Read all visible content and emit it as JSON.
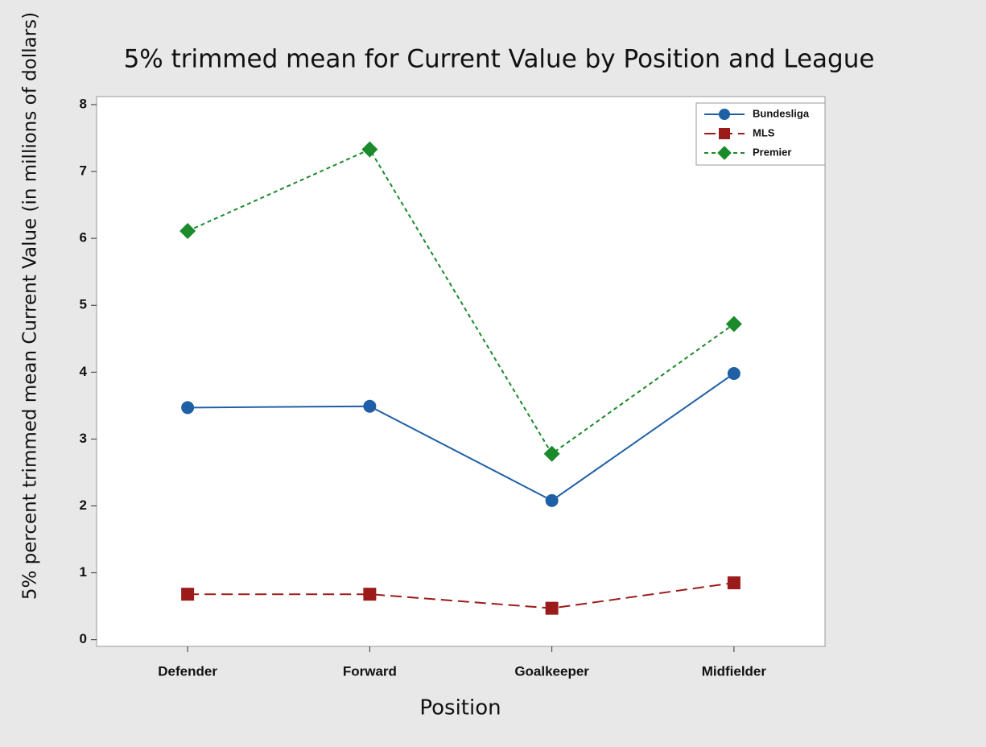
{
  "chart_data": {
    "type": "line",
    "title": "5% trimmed mean for Current Value by Position and League",
    "x_label": "Position",
    "y_label": "5% percent trimmed mean Current Value (in millions of dollars)",
    "categories": [
      "Defender",
      "Forward",
      "Goalkeeper",
      "Midfielder"
    ],
    "series": [
      {
        "name": "Bundesliga",
        "color": "#1f5fa6",
        "marker": "circle",
        "dash": "solid",
        "values": [
          3.47,
          3.49,
          2.08,
          3.98
        ]
      },
      {
        "name": "MLS",
        "color": "#9b1b1b",
        "marker": "square",
        "dash": "long",
        "values": [
          0.68,
          0.68,
          0.47,
          0.85
        ]
      },
      {
        "name": "Premier",
        "color": "#1a8a2a",
        "marker": "diamond",
        "dash": "short",
        "values": [
          6.11,
          7.33,
          2.78,
          4.72
        ]
      }
    ],
    "ylim": [
      -0.1,
      8.12
    ],
    "yticks": [
      0,
      1,
      2,
      3,
      4,
      5,
      6,
      7,
      8
    ],
    "legend": "top-right"
  }
}
